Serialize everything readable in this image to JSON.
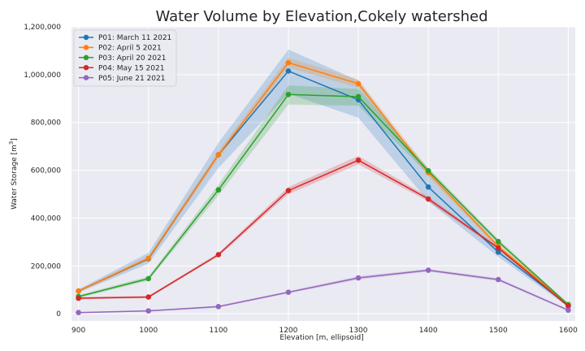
{
  "chart_data": {
    "type": "line",
    "title": "Water Volume by Elevation,Cokely watershed",
    "xlabel": "Elevation [m, ellipsoid]",
    "ylabel": "Water Storage [m",
    "ylabel_sup": "3",
    "ylabel_end": "]",
    "x": [
      900,
      1000,
      1100,
      1200,
      1300,
      1400,
      1500,
      1600
    ],
    "x_ticks": [
      "900",
      "1000",
      "1100",
      "1200",
      "1300",
      "1400",
      "1500",
      "1600"
    ],
    "y_ticks": [
      "0",
      "200,000",
      "400,000",
      "600,000",
      "800,000",
      "1,000,000",
      "1,200,000"
    ],
    "xlim": [
      890,
      1610
    ],
    "ylim": [
      -30000,
      1200000
    ],
    "grid": true,
    "legend_position": "upper-left",
    "series": [
      {
        "name": "P01: March 11 2021",
        "color": "#1f77b4",
        "values": [
          95000,
          230000,
          665000,
          1015000,
          895000,
          530000,
          258000,
          35000
        ],
        "lower": [
          88000,
          210000,
          610000,
          920000,
          820000,
          470000,
          238000,
          28000
        ],
        "upper": [
          102000,
          255000,
          715000,
          1105000,
          975000,
          585000,
          280000,
          42000
        ]
      },
      {
        "name": "P02: April 5 2021",
        "color": "#ff7f0e",
        "values": [
          95000,
          232000,
          665000,
          1050000,
          962000,
          590000,
          282000,
          38000
        ],
        "lower": [
          90000,
          222000,
          650000,
          1030000,
          945000,
          575000,
          272000,
          33000
        ],
        "upper": [
          100000,
          242000,
          680000,
          1070000,
          980000,
          605000,
          292000,
          43000
        ]
      },
      {
        "name": "P03: April 20 2021",
        "color": "#2ca02c",
        "values": [
          72000,
          147000,
          518000,
          917000,
          908000,
          598000,
          302000,
          38000
        ],
        "lower": [
          66000,
          138000,
          495000,
          875000,
          870000,
          585000,
          292000,
          33000
        ],
        "upper": [
          78000,
          156000,
          540000,
          955000,
          940000,
          610000,
          312000,
          43000
        ]
      },
      {
        "name": "P04: May 15 2021",
        "color": "#d62728",
        "values": [
          65000,
          70000,
          247000,
          515000,
          642000,
          480000,
          275000,
          32000
        ],
        "lower": [
          60000,
          65000,
          240000,
          500000,
          625000,
          470000,
          268000,
          27000
        ],
        "upper": [
          70000,
          75000,
          254000,
          530000,
          660000,
          490000,
          282000,
          37000
        ]
      },
      {
        "name": "P05: June 21 2021",
        "color": "#9467bd",
        "values": [
          5000,
          12000,
          30000,
          90000,
          150000,
          182000,
          143000,
          15000
        ],
        "lower": [
          3000,
          9000,
          26000,
          85000,
          143000,
          176000,
          137000,
          11000
        ],
        "upper": [
          7000,
          15000,
          34000,
          95000,
          157000,
          188000,
          149000,
          19000
        ]
      }
    ]
  }
}
